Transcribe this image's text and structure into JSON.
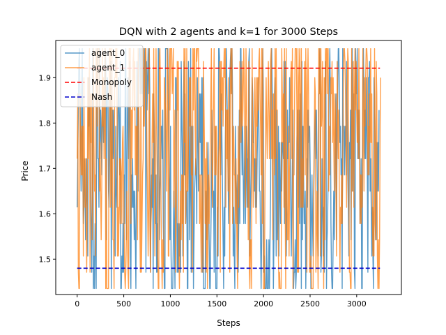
{
  "chart_data": {
    "type": "line",
    "title": "DQN with 2 agents and k=1 for 3000 Steps",
    "xlabel": "Steps",
    "ylabel": "Price",
    "xlim": [
      -230,
      3480
    ],
    "ylim": [
      1.422,
      1.982
    ],
    "xticks": [
      0,
      500,
      1000,
      1500,
      2000,
      2500,
      3000
    ],
    "yticks": [
      1.5,
      1.6,
      1.7,
      1.8,
      1.9
    ],
    "xtick_labels": [
      "0",
      "500",
      "1000",
      "1500",
      "2000",
      "2500",
      "3000"
    ],
    "ytick_labels": [
      "1.5",
      "1.6",
      "1.7",
      "1.8",
      "1.9"
    ],
    "legend_position": "top-left",
    "grid": false,
    "price_levels": [
      1.4353,
      1.471,
      1.5068,
      1.5426,
      1.5783,
      1.6141,
      1.6498,
      1.6856,
      1.7214,
      1.7571,
      1.7929,
      1.8286,
      1.8644,
      1.9001,
      1.9359,
      1.964
    ],
    "series": [
      {
        "name": "agent_0",
        "color": "#1f77b4",
        "opacity": 0.75,
        "style": "solid",
        "x_range": [
          0,
          3240
        ],
        "note_values": "per-step prices oscillate across the discrete price levels between 1.4353 and 1.9640"
      },
      {
        "name": "agent_1",
        "color": "#ff7f0e",
        "opacity": 0.75,
        "style": "solid",
        "x_range": [
          0,
          3260
        ],
        "note_values": "per-step prices oscillate across the discrete price levels between 1.4353 and 1.9640"
      },
      {
        "name": "Monopoly",
        "color": "#ff0000",
        "style": "dashed",
        "x": [
          0,
          3250
        ],
        "values": [
          1.921,
          1.921
        ]
      },
      {
        "name": "Nash",
        "color": "#0000cc",
        "style": "dashed",
        "x": [
          0,
          3250
        ],
        "values": [
          1.48,
          1.48
        ]
      }
    ]
  }
}
